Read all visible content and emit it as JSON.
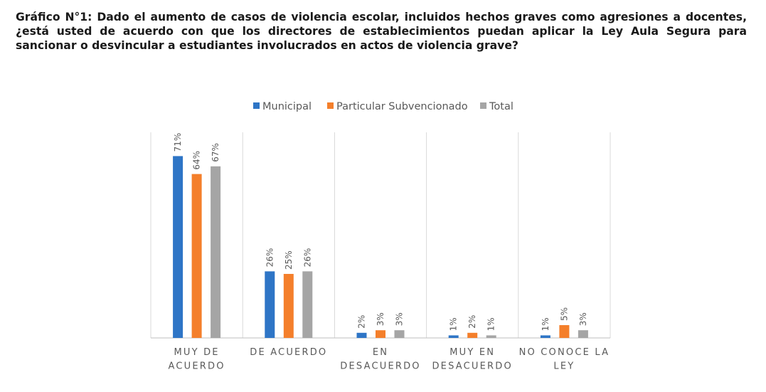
{
  "caption": {
    "label": "Gráfico N°1:",
    "text": "Dado el aumento de casos de violencia escolar, incluidos hechos graves como agresiones a docentes, ¿está usted de acuerdo con que los directores de establecimientos puedan aplicar la Ley Aula Segura para sancionar o desvincular a estudiantes involucrados en actos de violencia grave?"
  },
  "chart_data": {
    "type": "bar",
    "categories": [
      [
        "MUY DE",
        "ACUERDO"
      ],
      [
        "DE ACUERDO"
      ],
      [
        "EN",
        "DESACUERDO"
      ],
      [
        "MUY EN",
        "DESACUERDO"
      ],
      [
        "NO CONOCE LA",
        "LEY"
      ]
    ],
    "series": [
      {
        "name": "Municipal",
        "color": "#2E75C6",
        "values": [
          71,
          26,
          2,
          1,
          1
        ],
        "labels": [
          "71%",
          "26%",
          "2%",
          "1%",
          "1%"
        ]
      },
      {
        "name": "Particular Subvencionado",
        "color": "#F47F2B",
        "values": [
          64,
          25,
          3,
          2,
          5
        ],
        "labels": [
          "64%",
          "25%",
          "3%",
          "2%",
          "5%"
        ]
      },
      {
        "name": "Total",
        "color": "#A5A5A5",
        "values": [
          67,
          26,
          3,
          1,
          3
        ],
        "labels": [
          "67%",
          "26%",
          "3%",
          "1%",
          "3%"
        ]
      }
    ],
    "ylim": [
      0,
      80
    ],
    "gridlines": "vertical category separators",
    "legend_position": "top-center",
    "title": "",
    "xlabel": "",
    "ylabel": ""
  }
}
